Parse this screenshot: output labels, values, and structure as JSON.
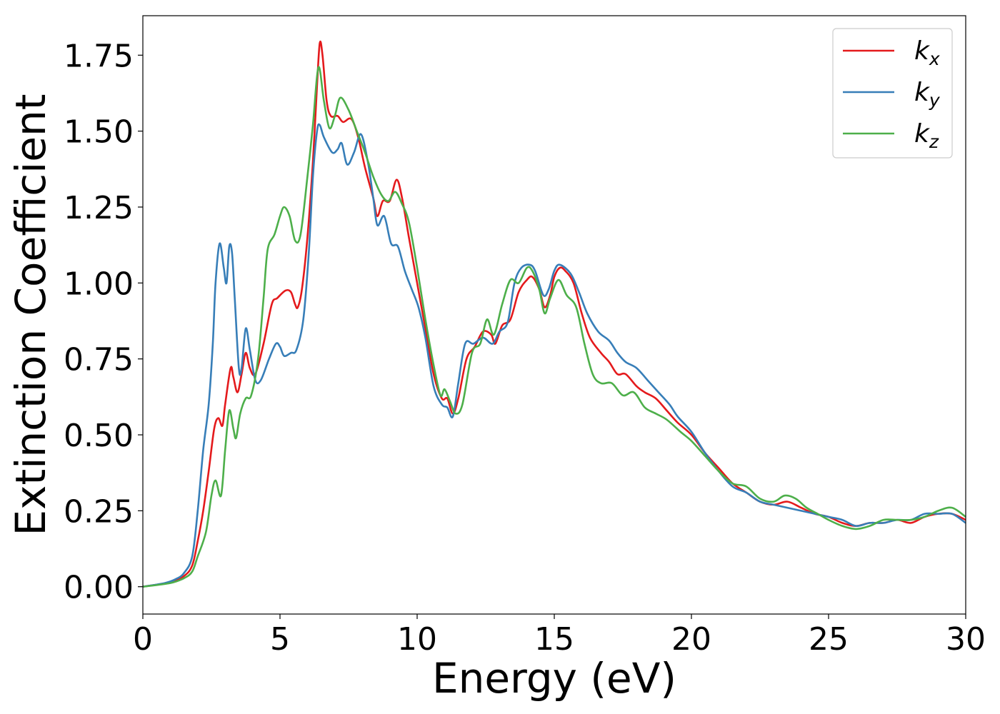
{
  "chart_data": {
    "type": "line",
    "xlabel": "Energy (eV)",
    "ylabel": "Extinction Coefficient",
    "xlim": [
      0,
      30
    ],
    "ylim": [
      -0.09,
      1.88
    ],
    "xticks": [
      0,
      5,
      10,
      15,
      20,
      25,
      30
    ],
    "xtick_labels": [
      "0",
      "5",
      "10",
      "15",
      "20",
      "25",
      "30"
    ],
    "yticks": [
      0,
      0.25,
      0.5,
      0.75,
      1.0,
      1.25,
      1.5,
      1.75
    ],
    "ytick_labels": [
      "0.00",
      "0.25",
      "0.50",
      "0.75",
      "1.00",
      "1.25",
      "1.50",
      "1.75"
    ],
    "grid": false,
    "legend_position": "top-right",
    "series": [
      {
        "name": "k_x",
        "legend_base": "k",
        "legend_sub": "x",
        "color": "#e41a1c",
        "points": [
          [
            0,
            0
          ],
          [
            1.0,
            0.015
          ],
          [
            1.5,
            0.035
          ],
          [
            1.8,
            0.07
          ],
          [
            2.0,
            0.15
          ],
          [
            2.2,
            0.25
          ],
          [
            2.4,
            0.38
          ],
          [
            2.6,
            0.52
          ],
          [
            2.75,
            0.555
          ],
          [
            2.9,
            0.53
          ],
          [
            3.0,
            0.6
          ],
          [
            3.2,
            0.72
          ],
          [
            3.3,
            0.69
          ],
          [
            3.45,
            0.64
          ],
          [
            3.6,
            0.7
          ],
          [
            3.75,
            0.77
          ],
          [
            3.9,
            0.72
          ],
          [
            4.1,
            0.7
          ],
          [
            4.4,
            0.8
          ],
          [
            4.7,
            0.93
          ],
          [
            4.9,
            0.95
          ],
          [
            5.2,
            0.975
          ],
          [
            5.4,
            0.97
          ],
          [
            5.55,
            0.93
          ],
          [
            5.65,
            0.92
          ],
          [
            5.8,
            0.98
          ],
          [
            6.0,
            1.15
          ],
          [
            6.2,
            1.4
          ],
          [
            6.35,
            1.65
          ],
          [
            6.45,
            1.79
          ],
          [
            6.55,
            1.75
          ],
          [
            6.7,
            1.6
          ],
          [
            6.85,
            1.55
          ],
          [
            7.1,
            1.55
          ],
          [
            7.3,
            1.53
          ],
          [
            7.6,
            1.54
          ],
          [
            7.85,
            1.48
          ],
          [
            8.1,
            1.38
          ],
          [
            8.4,
            1.28
          ],
          [
            8.55,
            1.22
          ],
          [
            8.75,
            1.27
          ],
          [
            9.0,
            1.27
          ],
          [
            9.25,
            1.34
          ],
          [
            9.45,
            1.28
          ],
          [
            9.7,
            1.15
          ],
          [
            10.0,
            1.0
          ],
          [
            10.3,
            0.85
          ],
          [
            10.6,
            0.7
          ],
          [
            10.9,
            0.62
          ],
          [
            11.1,
            0.62
          ],
          [
            11.3,
            0.57
          ],
          [
            11.5,
            0.62
          ],
          [
            11.8,
            0.75
          ],
          [
            12.1,
            0.79
          ],
          [
            12.4,
            0.84
          ],
          [
            12.7,
            0.83
          ],
          [
            12.85,
            0.8
          ],
          [
            13.1,
            0.86
          ],
          [
            13.4,
            0.88
          ],
          [
            13.7,
            0.97
          ],
          [
            14.0,
            1.01
          ],
          [
            14.2,
            1.02
          ],
          [
            14.45,
            0.98
          ],
          [
            14.65,
            0.92
          ],
          [
            14.85,
            0.96
          ],
          [
            15.0,
            1.02
          ],
          [
            15.2,
            1.05
          ],
          [
            15.4,
            1.04
          ],
          [
            15.7,
            1.0
          ],
          [
            16.0,
            0.9
          ],
          [
            16.3,
            0.82
          ],
          [
            16.7,
            0.77
          ],
          [
            17.0,
            0.74
          ],
          [
            17.3,
            0.7
          ],
          [
            17.6,
            0.7
          ],
          [
            18.0,
            0.66
          ],
          [
            18.3,
            0.64
          ],
          [
            18.7,
            0.62
          ],
          [
            19.1,
            0.58
          ],
          [
            19.5,
            0.54
          ],
          [
            20.0,
            0.5
          ],
          [
            20.5,
            0.44
          ],
          [
            21.0,
            0.39
          ],
          [
            21.5,
            0.34
          ],
          [
            22.0,
            0.31
          ],
          [
            22.5,
            0.28
          ],
          [
            23.0,
            0.27
          ],
          [
            23.5,
            0.28
          ],
          [
            24.0,
            0.26
          ],
          [
            24.5,
            0.24
          ],
          [
            25.0,
            0.23
          ],
          [
            25.5,
            0.21
          ],
          [
            26.0,
            0.2
          ],
          [
            26.5,
            0.21
          ],
          [
            27.0,
            0.21
          ],
          [
            27.5,
            0.22
          ],
          [
            28.0,
            0.21
          ],
          [
            28.5,
            0.23
          ],
          [
            29.0,
            0.24
          ],
          [
            29.5,
            0.24
          ],
          [
            30.0,
            0.22
          ]
        ]
      },
      {
        "name": "k_y",
        "legend_base": "k",
        "legend_sub": "y",
        "color": "#377eb8",
        "points": [
          [
            0,
            0
          ],
          [
            0.8,
            0.012
          ],
          [
            1.2,
            0.025
          ],
          [
            1.5,
            0.045
          ],
          [
            1.8,
            0.1
          ],
          [
            2.0,
            0.25
          ],
          [
            2.2,
            0.45
          ],
          [
            2.4,
            0.6
          ],
          [
            2.55,
            0.8
          ],
          [
            2.65,
            1.0
          ],
          [
            2.8,
            1.13
          ],
          [
            2.95,
            1.05
          ],
          [
            3.05,
            1.0
          ],
          [
            3.15,
            1.12
          ],
          [
            3.25,
            1.1
          ],
          [
            3.35,
            0.95
          ],
          [
            3.5,
            0.72
          ],
          [
            3.6,
            0.72
          ],
          [
            3.75,
            0.85
          ],
          [
            3.9,
            0.78
          ],
          [
            4.1,
            0.68
          ],
          [
            4.3,
            0.68
          ],
          [
            4.6,
            0.75
          ],
          [
            4.85,
            0.8
          ],
          [
            5.0,
            0.79
          ],
          [
            5.15,
            0.76
          ],
          [
            5.4,
            0.77
          ],
          [
            5.6,
            0.78
          ],
          [
            5.85,
            0.88
          ],
          [
            6.05,
            1.1
          ],
          [
            6.2,
            1.35
          ],
          [
            6.35,
            1.5
          ],
          [
            6.45,
            1.52
          ],
          [
            6.6,
            1.48
          ],
          [
            6.9,
            1.43
          ],
          [
            7.1,
            1.44
          ],
          [
            7.25,
            1.46
          ],
          [
            7.45,
            1.39
          ],
          [
            7.7,
            1.43
          ],
          [
            7.95,
            1.49
          ],
          [
            8.2,
            1.4
          ],
          [
            8.4,
            1.28
          ],
          [
            8.55,
            1.19
          ],
          [
            8.8,
            1.22
          ],
          [
            9.05,
            1.13
          ],
          [
            9.3,
            1.12
          ],
          [
            9.55,
            1.04
          ],
          [
            9.8,
            0.98
          ],
          [
            10.05,
            0.92
          ],
          [
            10.3,
            0.82
          ],
          [
            10.6,
            0.66
          ],
          [
            10.9,
            0.6
          ],
          [
            11.1,
            0.59
          ],
          [
            11.3,
            0.56
          ],
          [
            11.5,
            0.67
          ],
          [
            11.75,
            0.8
          ],
          [
            12.05,
            0.8
          ],
          [
            12.4,
            0.82
          ],
          [
            12.75,
            0.8
          ],
          [
            13.0,
            0.84
          ],
          [
            13.3,
            0.87
          ],
          [
            13.55,
            1.0
          ],
          [
            13.8,
            1.05
          ],
          [
            14.1,
            1.06
          ],
          [
            14.3,
            1.04
          ],
          [
            14.6,
            0.96
          ],
          [
            14.8,
            0.98
          ],
          [
            15.0,
            1.04
          ],
          [
            15.2,
            1.06
          ],
          [
            15.6,
            1.03
          ],
          [
            15.9,
            0.97
          ],
          [
            16.2,
            0.9
          ],
          [
            16.6,
            0.84
          ],
          [
            17.0,
            0.81
          ],
          [
            17.3,
            0.77
          ],
          [
            17.6,
            0.74
          ],
          [
            18.0,
            0.72
          ],
          [
            18.4,
            0.68
          ],
          [
            18.8,
            0.64
          ],
          [
            19.2,
            0.6
          ],
          [
            19.5,
            0.56
          ],
          [
            20.0,
            0.51
          ],
          [
            20.5,
            0.44
          ],
          [
            21.0,
            0.38
          ],
          [
            21.5,
            0.33
          ],
          [
            22.0,
            0.31
          ],
          [
            22.5,
            0.28
          ],
          [
            23.0,
            0.27
          ],
          [
            23.5,
            0.26
          ],
          [
            24.0,
            0.25
          ],
          [
            24.5,
            0.24
          ],
          [
            25.0,
            0.23
          ],
          [
            25.5,
            0.22
          ],
          [
            26.0,
            0.2
          ],
          [
            26.5,
            0.21
          ],
          [
            27.0,
            0.21
          ],
          [
            27.5,
            0.22
          ],
          [
            28.0,
            0.22
          ],
          [
            28.5,
            0.24
          ],
          [
            29.0,
            0.24
          ],
          [
            29.5,
            0.24
          ],
          [
            30.0,
            0.21
          ]
        ]
      },
      {
        "name": "k_z",
        "legend_base": "k",
        "legend_sub": "z",
        "color": "#4daf4a",
        "points": [
          [
            0,
            0
          ],
          [
            1.0,
            0.012
          ],
          [
            1.5,
            0.028
          ],
          [
            1.8,
            0.05
          ],
          [
            2.0,
            0.1
          ],
          [
            2.3,
            0.18
          ],
          [
            2.5,
            0.3
          ],
          [
            2.65,
            0.35
          ],
          [
            2.85,
            0.3
          ],
          [
            3.0,
            0.45
          ],
          [
            3.15,
            0.58
          ],
          [
            3.3,
            0.52
          ],
          [
            3.4,
            0.49
          ],
          [
            3.55,
            0.57
          ],
          [
            3.75,
            0.62
          ],
          [
            3.95,
            0.63
          ],
          [
            4.2,
            0.75
          ],
          [
            4.4,
            0.95
          ],
          [
            4.55,
            1.11
          ],
          [
            4.8,
            1.16
          ],
          [
            5.0,
            1.22
          ],
          [
            5.15,
            1.25
          ],
          [
            5.35,
            1.22
          ],
          [
            5.55,
            1.14
          ],
          [
            5.75,
            1.16
          ],
          [
            6.0,
            1.35
          ],
          [
            6.2,
            1.52
          ],
          [
            6.4,
            1.71
          ],
          [
            6.6,
            1.6
          ],
          [
            6.8,
            1.51
          ],
          [
            7.0,
            1.55
          ],
          [
            7.2,
            1.61
          ],
          [
            7.5,
            1.57
          ],
          [
            7.8,
            1.5
          ],
          [
            8.1,
            1.43
          ],
          [
            8.4,
            1.35
          ],
          [
            8.7,
            1.29
          ],
          [
            8.95,
            1.27
          ],
          [
            9.2,
            1.3
          ],
          [
            9.45,
            1.26
          ],
          [
            9.7,
            1.2
          ],
          [
            10.0,
            1.05
          ],
          [
            10.3,
            0.88
          ],
          [
            10.6,
            0.73
          ],
          [
            10.85,
            0.63
          ],
          [
            11.0,
            0.65
          ],
          [
            11.2,
            0.61
          ],
          [
            11.4,
            0.57
          ],
          [
            11.65,
            0.6
          ],
          [
            12.0,
            0.77
          ],
          [
            12.3,
            0.8
          ],
          [
            12.55,
            0.88
          ],
          [
            12.8,
            0.83
          ],
          [
            13.1,
            0.93
          ],
          [
            13.4,
            1.01
          ],
          [
            13.7,
            1.0
          ],
          [
            14.0,
            1.05
          ],
          [
            14.2,
            1.04
          ],
          [
            14.45,
            0.98
          ],
          [
            14.65,
            0.9
          ],
          [
            14.85,
            0.95
          ],
          [
            15.15,
            1.01
          ],
          [
            15.45,
            0.96
          ],
          [
            15.8,
            0.92
          ],
          [
            16.1,
            0.8
          ],
          [
            16.4,
            0.7
          ],
          [
            16.7,
            0.67
          ],
          [
            17.1,
            0.67
          ],
          [
            17.5,
            0.63
          ],
          [
            17.9,
            0.64
          ],
          [
            18.3,
            0.59
          ],
          [
            18.7,
            0.57
          ],
          [
            19.1,
            0.55
          ],
          [
            19.6,
            0.51
          ],
          [
            20.0,
            0.48
          ],
          [
            20.5,
            0.43
          ],
          [
            21.0,
            0.38
          ],
          [
            21.5,
            0.34
          ],
          [
            22.0,
            0.33
          ],
          [
            22.5,
            0.29
          ],
          [
            23.0,
            0.28
          ],
          [
            23.4,
            0.3
          ],
          [
            23.8,
            0.29
          ],
          [
            24.2,
            0.26
          ],
          [
            24.6,
            0.24
          ],
          [
            25.0,
            0.22
          ],
          [
            25.5,
            0.2
          ],
          [
            26.0,
            0.19
          ],
          [
            26.5,
            0.2
          ],
          [
            27.0,
            0.22
          ],
          [
            27.5,
            0.22
          ],
          [
            28.0,
            0.22
          ],
          [
            28.5,
            0.23
          ],
          [
            29.0,
            0.25
          ],
          [
            29.5,
            0.26
          ],
          [
            30.0,
            0.23
          ]
        ]
      }
    ]
  }
}
